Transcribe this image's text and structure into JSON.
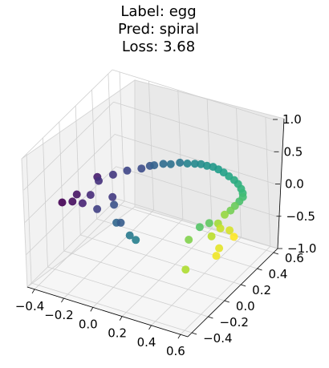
{
  "chart_data": {
    "type": "scatter",
    "title_lines": [
      "Label: egg",
      "Pred: spiral",
      "Loss: 3.68"
    ],
    "colormap": "viridis",
    "grid": true,
    "x_ticks": [
      "−0.4",
      "−0.2",
      "0.0",
      "0.2",
      "0.4",
      "0.6"
    ],
    "y_ticks": [
      "−0.4",
      "−0.2",
      "0.0",
      "0.2",
      "0.4",
      "0.6"
    ],
    "z_ticks": [
      "−1.0",
      "−0.5",
      "0.0",
      "0.5",
      "1.0"
    ],
    "xlim": [
      -0.45,
      0.65
    ],
    "ylim": [
      -0.45,
      0.65
    ],
    "zlim": [
      -1.0,
      1.0
    ],
    "points": [
      {
        "x": -0.38,
        "y": -0.12,
        "z": -0.05,
        "t": 0.0
      },
      {
        "x": -0.32,
        "y": -0.1,
        "z": -0.02,
        "t": 0.03
      },
      {
        "x": -0.3,
        "y": -0.08,
        "z": 0.08,
        "t": 0.05
      },
      {
        "x": -0.2,
        "y": 0.0,
        "z": 0.32,
        "t": 0.08
      },
      {
        "x": -0.28,
        "y": -0.05,
        "z": -0.08,
        "t": 0.1
      },
      {
        "x": -0.24,
        "y": -0.02,
        "z": 0.04,
        "t": 0.12
      },
      {
        "x": -0.18,
        "y": -0.02,
        "z": 0.3,
        "t": 0.14
      },
      {
        "x": -0.12,
        "y": 0.05,
        "z": 0.35,
        "t": 0.16
      },
      {
        "x": -0.1,
        "y": 0.0,
        "z": 0.08,
        "t": 0.17
      },
      {
        "x": -0.18,
        "y": -0.05,
        "z": -0.1,
        "t": 0.19
      },
      {
        "x": -0.05,
        "y": 0.1,
        "z": 0.4,
        "t": 0.21
      },
      {
        "x": 0.02,
        "y": 0.15,
        "z": 0.42,
        "t": 0.23
      },
      {
        "x": -0.08,
        "y": -0.02,
        "z": 0.0,
        "t": 0.25
      },
      {
        "x": 0.05,
        "y": 0.2,
        "z": 0.42,
        "t": 0.27
      },
      {
        "x": -0.02,
        "y": -0.05,
        "z": -0.2,
        "t": 0.29
      },
      {
        "x": 0.08,
        "y": 0.2,
        "z": 0.45,
        "t": 0.31
      },
      {
        "x": -0.05,
        "y": -0.05,
        "z": -0.22,
        "t": 0.33
      },
      {
        "x": 0.12,
        "y": 0.24,
        "z": 0.45,
        "t": 0.35
      },
      {
        "x": 0.16,
        "y": 0.26,
        "z": 0.45,
        "t": 0.37
      },
      {
        "x": 0.2,
        "y": 0.3,
        "z": 0.45,
        "t": 0.39
      },
      {
        "x": -0.02,
        "y": 0.05,
        "z": -0.52,
        "t": 0.41
      },
      {
        "x": 0.05,
        "y": 0.0,
        "z": -0.48,
        "t": 0.43
      },
      {
        "x": 0.24,
        "y": 0.32,
        "z": 0.44,
        "t": 0.45
      },
      {
        "x": 0.28,
        "y": 0.34,
        "z": 0.44,
        "t": 0.47
      },
      {
        "x": 0.31,
        "y": 0.36,
        "z": 0.43,
        "t": 0.49
      },
      {
        "x": 0.34,
        "y": 0.38,
        "z": 0.4,
        "t": 0.51
      },
      {
        "x": 0.37,
        "y": 0.4,
        "z": 0.38,
        "t": 0.53
      },
      {
        "x": 0.4,
        "y": 0.41,
        "z": 0.35,
        "t": 0.55
      },
      {
        "x": 0.43,
        "y": 0.42,
        "z": 0.31,
        "t": 0.57
      },
      {
        "x": 0.46,
        "y": 0.43,
        "z": 0.26,
        "t": 0.59
      },
      {
        "x": 0.49,
        "y": 0.44,
        "z": 0.21,
        "t": 0.61
      },
      {
        "x": 0.51,
        "y": 0.45,
        "z": 0.15,
        "t": 0.63
      },
      {
        "x": 0.53,
        "y": 0.45,
        "z": 0.09,
        "t": 0.65
      },
      {
        "x": 0.54,
        "y": 0.45,
        "z": 0.03,
        "t": 0.67
      },
      {
        "x": 0.54,
        "y": 0.45,
        "z": -0.03,
        "t": 0.69
      },
      {
        "x": 0.52,
        "y": 0.44,
        "z": -0.1,
        "t": 0.71
      },
      {
        "x": 0.35,
        "y": 0.25,
        "z": -0.38,
        "t": 0.73
      },
      {
        "x": 0.4,
        "y": 0.28,
        "z": -0.32,
        "t": 0.75
      },
      {
        "x": 0.5,
        "y": 0.42,
        "z": -0.16,
        "t": 0.77
      },
      {
        "x": 0.48,
        "y": 0.4,
        "z": -0.22,
        "t": 0.79
      },
      {
        "x": 0.3,
        "y": 0.2,
        "z": -0.55,
        "t": 0.81
      },
      {
        "x": 0.45,
        "y": 0.38,
        "z": -0.28,
        "t": 0.84
      },
      {
        "x": 0.42,
        "y": 0.35,
        "z": -0.4,
        "t": 0.86
      },
      {
        "x": 0.3,
        "y": 0.15,
        "z": -0.95,
        "t": 0.88
      },
      {
        "x": 0.4,
        "y": 0.3,
        "z": -0.55,
        "t": 0.9
      },
      {
        "x": 0.44,
        "y": 0.34,
        "z": -0.45,
        "t": 0.92
      },
      {
        "x": 0.48,
        "y": 0.38,
        "z": -0.5,
        "t": 0.94
      },
      {
        "x": 0.45,
        "y": 0.3,
        "z": -0.7,
        "t": 0.96
      },
      {
        "x": 0.44,
        "y": 0.28,
        "z": -0.8,
        "t": 0.98
      },
      {
        "x": 0.52,
        "y": 0.36,
        "z": -0.55,
        "t": 1.0
      }
    ]
  }
}
